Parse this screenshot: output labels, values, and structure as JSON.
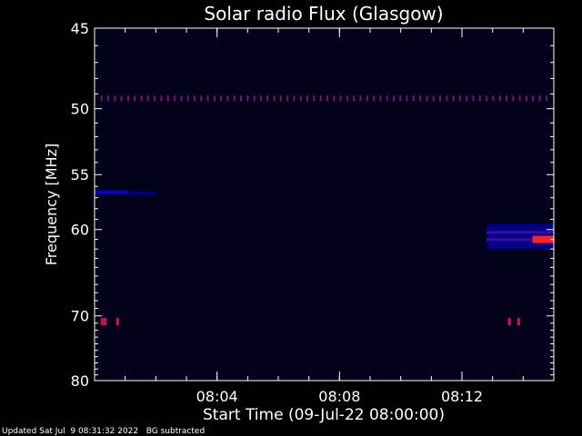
{
  "chart_data": {
    "type": "heatmap",
    "title": "Solar radio Flux (Glasgow)",
    "xlabel": "Start Time (09-Jul-22 08:00:00)",
    "ylabel": "Frequency [MHz]",
    "x_range_minutes": [
      0,
      15
    ],
    "x_ticks": [
      {
        "minute": 4,
        "label": "08:04"
      },
      {
        "minute": 8,
        "label": "08:08"
      },
      {
        "minute": 12,
        "label": "08:12"
      }
    ],
    "y_range_mhz": [
      45,
      80
    ],
    "y_reversed": true,
    "y_ticks": [
      {
        "mhz": 45,
        "label": "45"
      },
      {
        "mhz": 50,
        "label": "50"
      },
      {
        "mhz": 55,
        "label": "55"
      },
      {
        "mhz": 60,
        "label": "60"
      },
      {
        "mhz": 70,
        "label": "70"
      },
      {
        "mhz": 80,
        "label": "80"
      }
    ],
    "colors": {
      "background": "#000000",
      "plot_background": "#02021a",
      "low": "#0000cc",
      "high": "#ff2020"
    },
    "features": [
      {
        "kind": "dotted_band",
        "freq_mhz": 49.3,
        "minute_start": 0.2,
        "minute_end": 14.9,
        "intensity": 0.8
      },
      {
        "kind": "band",
        "freq_mhz": 56.5,
        "minute_start": 0,
        "minute_end": 1.1,
        "intensity": 0.6
      },
      {
        "kind": "band",
        "freq_mhz": 56.6,
        "minute_start": 1.1,
        "minute_end": 2.0,
        "intensity": 0.3
      },
      {
        "kind": "burst",
        "freq_mhz": 60.6,
        "minute_start": 12.8,
        "minute_end": 15,
        "intensity": 0.7
      },
      {
        "kind": "burst_peak",
        "freq_mhz": 61.0,
        "minute_start": 14.3,
        "minute_end": 15,
        "intensity": 1.0
      },
      {
        "kind": "spot",
        "freq_mhz": 70.8,
        "minute_start": 0.2,
        "minute_end": 0.4,
        "intensity": 0.9
      },
      {
        "kind": "spot",
        "freq_mhz": 70.8,
        "minute_start": 0.7,
        "minute_end": 0.8,
        "intensity": 0.9
      },
      {
        "kind": "spot",
        "freq_mhz": 70.8,
        "minute_start": 13.5,
        "minute_end": 13.6,
        "intensity": 0.9
      },
      {
        "kind": "spot",
        "freq_mhz": 70.8,
        "minute_start": 13.8,
        "minute_end": 13.9,
        "intensity": 0.9
      }
    ]
  },
  "footer": {
    "updated": "Updated Sat Jul  9 08:31:32 2022",
    "note": "BG subtracted"
  }
}
